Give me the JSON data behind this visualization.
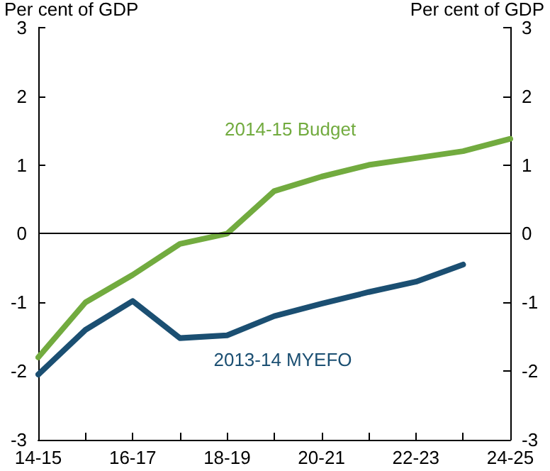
{
  "chart_data": {
    "type": "line",
    "ylabel": "Per cent of GDP",
    "y2label": "Per cent of GDP",
    "categories": [
      "14-15",
      null,
      "16-17",
      null,
      "18-19",
      null,
      "20-21",
      null,
      "22-23",
      null,
      "24-25"
    ],
    "ref_lines": [
      {
        "axis": "y",
        "value": 0,
        "color": "#000000"
      }
    ],
    "series": [
      {
        "name": "2014-15 Budget",
        "color": "#72ab3f",
        "values": [
          -1.8,
          -1.0,
          -0.6,
          -0.15,
          0,
          0.62,
          0.83,
          1.0,
          1.1,
          1.2,
          1.38
        ]
      },
      {
        "name": "2013-14 MYEFO",
        "color": "#1b4f72",
        "values": [
          -2.05,
          -1.4,
          -0.98,
          -1.52,
          -1.48,
          -1.2,
          -1.02,
          -0.85,
          -0.7,
          -0.45,
          null
        ]
      }
    ],
    "ylim": [
      -3,
      3
    ],
    "yticks": [
      -3,
      -2,
      -1,
      0,
      1,
      2,
      3
    ],
    "y2lim": [
      -3,
      3
    ],
    "y2ticks": [
      -3,
      -2,
      -1,
      0,
      1,
      2,
      3
    ],
    "grid": false,
    "legend": false,
    "marker": "none",
    "line_style": "solid"
  }
}
